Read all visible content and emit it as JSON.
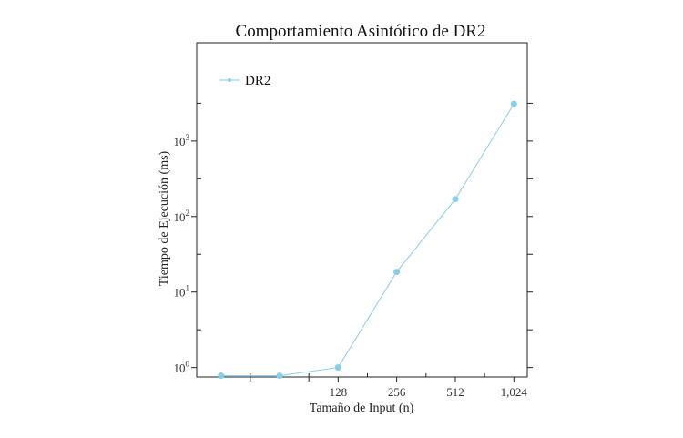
{
  "chart_data": {
    "type": "line",
    "title": "Comportamiento Asintótico de DR2",
    "xlabel": "Tamaño de Input (n)",
    "ylabel": "Tiempo de Ejecución (ms)",
    "x_scale": "log2",
    "y_scale": "log10",
    "xlim": [
      24,
      1200
    ],
    "ylim": [
      0.75,
      20000
    ],
    "x_ticks": [
      {
        "value": 128,
        "label": "128"
      },
      {
        "value": 256,
        "label": "256"
      },
      {
        "value": 512,
        "label": "512"
      },
      {
        "value": 1024,
        "label": "1,024"
      }
    ],
    "y_ticks": [
      {
        "value": 1,
        "base": "10",
        "exp": "0"
      },
      {
        "value": 10,
        "base": "10",
        "exp": "1"
      },
      {
        "value": 100,
        "base": "10",
        "exp": "2"
      },
      {
        "value": 1000,
        "base": "10",
        "exp": "3"
      }
    ],
    "x": [
      32,
      64,
      128,
      256,
      512,
      1024
    ],
    "series": [
      {
        "name": "DR2",
        "color": "#87ceeb",
        "values": [
          0.78,
          0.78,
          1.0,
          18.5,
          170,
          3100
        ]
      }
    ],
    "legend": {
      "position": "top-left"
    },
    "grid": false
  }
}
